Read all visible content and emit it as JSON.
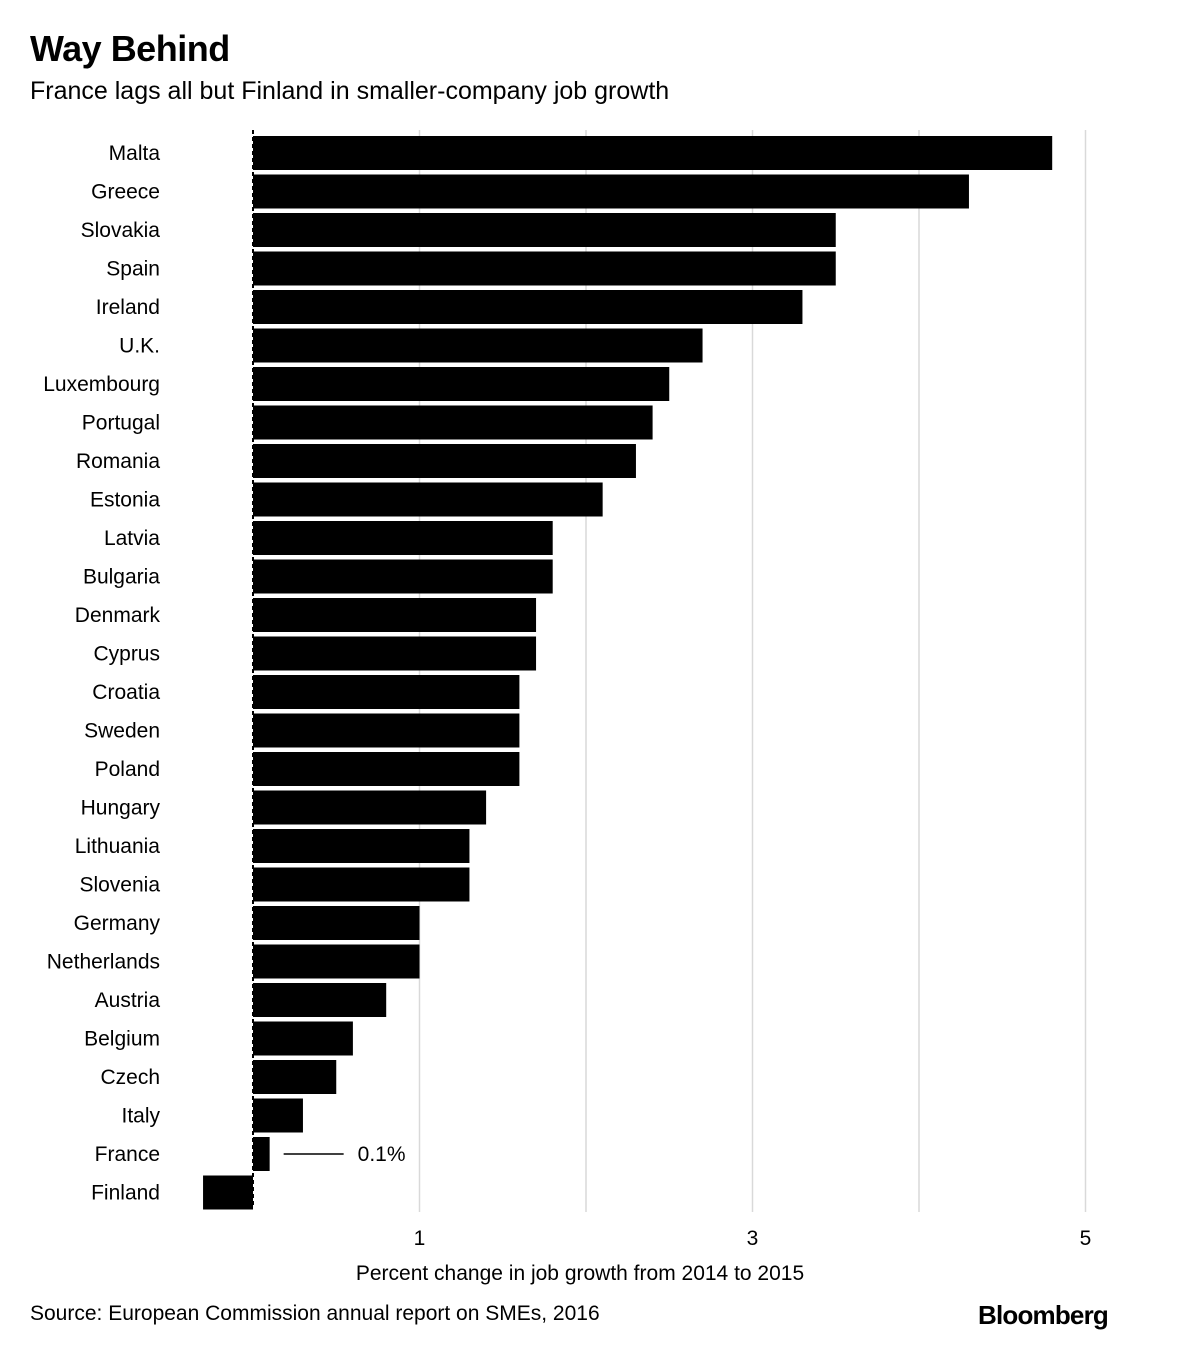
{
  "header": {
    "title": "Way Behind",
    "subtitle": "France lags all but Finland in smaller-company job growth"
  },
  "footer": {
    "source": "Source: European Commission annual report on SMEs, 2016",
    "brand": "Bloomberg"
  },
  "colors": {
    "bar": "#000000",
    "grid": "#d9d9d9",
    "background": "#ffffff"
  },
  "chart_data": {
    "type": "bar",
    "orientation": "horizontal",
    "title": "Way Behind",
    "subtitle": "France lags all but Finland in smaller-company job growth",
    "xlabel": "Percent change in job growth from 2014 to 2015",
    "ylabel": "",
    "xlim": [
      -0.3,
      5
    ],
    "xticks": [
      1,
      3,
      5
    ],
    "xtick_labels": [
      "1",
      "3",
      "5"
    ],
    "grid": true,
    "categories": [
      "Malta",
      "Greece",
      "Slovakia",
      "Spain",
      "Ireland",
      "U.K.",
      "Luxembourg",
      "Portugal",
      "Romania",
      "Estonia",
      "Latvia",
      "Bulgaria",
      "Denmark",
      "Cyprus",
      "Croatia",
      "Sweden",
      "Poland",
      "Hungary",
      "Lithuania",
      "Slovenia",
      "Germany",
      "Netherlands",
      "Austria",
      "Belgium",
      "Czech",
      "Italy",
      "France",
      "Finland"
    ],
    "values": [
      4.8,
      4.3,
      3.5,
      3.5,
      3.3,
      2.7,
      2.5,
      2.4,
      2.3,
      2.1,
      1.8,
      1.8,
      1.7,
      1.7,
      1.6,
      1.6,
      1.6,
      1.4,
      1.3,
      1.3,
      1.0,
      1.0,
      0.8,
      0.6,
      0.5,
      0.3,
      0.1,
      -0.3
    ],
    "annotations": [
      {
        "category": "France",
        "text": "0.1%"
      }
    ]
  }
}
